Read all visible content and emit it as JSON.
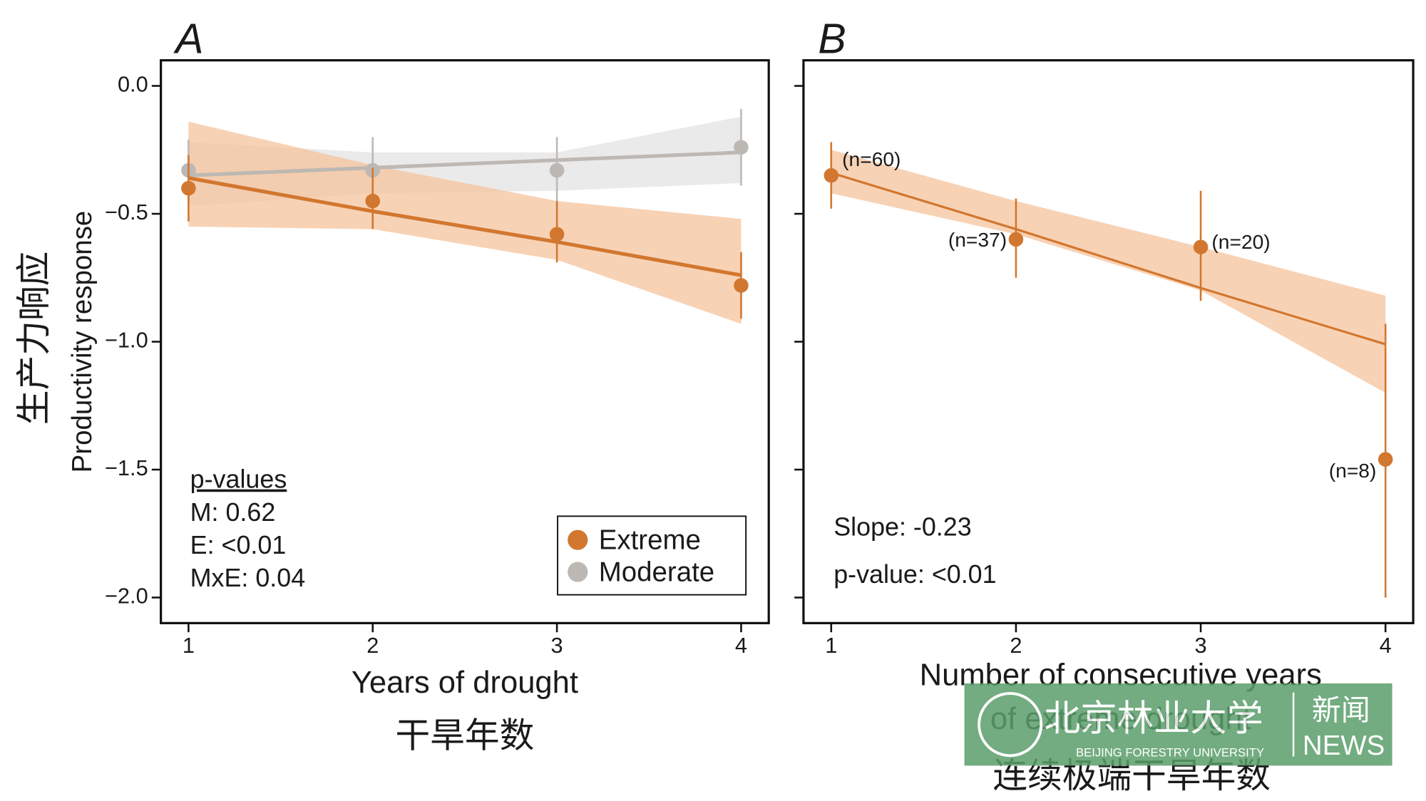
{
  "chart_data": [
    {
      "type": "errorline",
      "panel": "A",
      "x_label": "Years of drought",
      "x_label_cn": "干旱年数",
      "y_label": "Productivity response",
      "y_label_cn": "生产力响应",
      "x": [
        1,
        2,
        3,
        4
      ],
      "xlim": [
        0.85,
        4.15
      ],
      "xticks": [
        1,
        2,
        3,
        4
      ],
      "ylim": [
        -2.1,
        0.1
      ],
      "yticks": [
        {
          "value": 0,
          "label": "0.0"
        },
        {
          "value": -0.5,
          "label": "−0.5"
        },
        {
          "value": -1,
          "label": "−1.0"
        },
        {
          "value": -1.5,
          "label": "−1.5"
        },
        {
          "value": -2,
          "label": "−2.0"
        }
      ],
      "ytick_labels": true,
      "series": [
        {
          "name": "Moderate",
          "color": "#bdb8b3",
          "band_color": "#e3e3e3",
          "values": [
            -0.33,
            -0.33,
            -0.33,
            -0.24
          ],
          "err_low": [
            -0.46,
            -0.45,
            -0.47,
            -0.39
          ],
          "err_high": [
            -0.21,
            -0.2,
            -0.2,
            -0.09
          ],
          "fit_values": [
            -0.35,
            -0.32,
            -0.29,
            -0.26
          ],
          "band_upper": [
            -0.22,
            -0.26,
            -0.26,
            -0.12
          ],
          "band_lower": [
            -0.47,
            -0.42,
            -0.41,
            -0.38
          ]
        },
        {
          "name": "Extreme",
          "color": "#d2772f",
          "band_color": "#f6c39c",
          "values": [
            -0.4,
            -0.45,
            -0.58,
            -0.78
          ],
          "err_low": [
            -0.53,
            -0.56,
            -0.69,
            -0.91
          ],
          "err_high": [
            -0.27,
            -0.32,
            -0.45,
            -0.65
          ],
          "fit_values": [
            -0.36,
            -0.49,
            -0.61,
            -0.74
          ],
          "band_upper": [
            -0.14,
            -0.31,
            -0.45,
            -0.52
          ],
          "band_lower": [
            -0.55,
            -0.56,
            -0.68,
            -0.93
          ]
        }
      ],
      "legend": "lower right",
      "annotations": [
        "p-values",
        "M: 0.62",
        "E: <0.01",
        "MxE: 0.04"
      ]
    },
    {
      "type": "errorline",
      "panel": "B",
      "x_label": "Number of consecutive years",
      "x_label_2": "of extreme drought",
      "x_label_cn": "连续极端干旱年数",
      "x": [
        1,
        2,
        3,
        4
      ],
      "xlim": [
        0.85,
        4.15
      ],
      "xticks": [
        1,
        2,
        3,
        4
      ],
      "ylim": [
        -2.1,
        0.1
      ],
      "yticks": [
        0,
        -0.5,
        -1,
        -1.5,
        -2
      ],
      "ytick_labels": false,
      "series": [
        {
          "color": "#d2772f",
          "band_color": "#f6c39c",
          "values": [
            -0.35,
            -0.6,
            -0.63,
            -1.46
          ],
          "err_low": [
            -0.48,
            -0.75,
            -0.84,
            -2.0
          ],
          "err_high": [
            -0.22,
            -0.44,
            -0.41,
            -0.93
          ],
          "fit_values": [
            -0.34,
            -0.56,
            -0.79,
            -1.01
          ],
          "band_upper": [
            -0.25,
            -0.45,
            -0.63,
            -0.82
          ],
          "band_lower": [
            -0.42,
            -0.58,
            -0.8,
            -1.2
          ],
          "point_labels": [
            "(n=60)",
            "(n=37)",
            "(n=20)",
            "(n=8)"
          ]
        }
      ],
      "annotations": [
        "Slope: -0.23",
        "p-value: <0.01"
      ]
    }
  ],
  "watermark": {
    "name_cn": "北京林业大学",
    "name_en": "BEIJING FORESTRY UNIVERSITY",
    "news_cn": "新闻",
    "news_en": "NEWS"
  }
}
